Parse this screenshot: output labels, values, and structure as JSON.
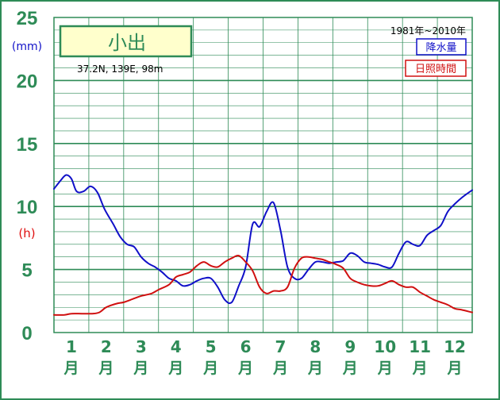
{
  "chart_data": {
    "type": "line",
    "title": "小出",
    "location": "37.2N,  139E,  98m",
    "period": "1981年~2010年",
    "unit_precip": "(mm)",
    "unit_sun": "(h)",
    "ylim": [
      0,
      25
    ],
    "y_ticks": [
      "0",
      "5",
      "10",
      "15",
      "20",
      "25"
    ],
    "months": [
      {
        "num": "1",
        "kanji": "月"
      },
      {
        "num": "2",
        "kanji": "月"
      },
      {
        "num": "3",
        "kanji": "月"
      },
      {
        "num": "4",
        "kanji": "月"
      },
      {
        "num": "5",
        "kanji": "月"
      },
      {
        "num": "6",
        "kanji": "月"
      },
      {
        "num": "7",
        "kanji": "月"
      },
      {
        "num": "8",
        "kanji": "月"
      },
      {
        "num": "9",
        "kanji": "月"
      },
      {
        "num": "10",
        "kanji": "月"
      },
      {
        "num": "11",
        "kanji": "月"
      },
      {
        "num": "12",
        "kanji": "月"
      }
    ],
    "x_range": [
      0.5,
      12.5
    ],
    "series": [
      {
        "name": "降水量",
        "color": "#1010c8",
        "x": [
          0.5,
          0.7,
          0.85,
          1.0,
          1.15,
          1.35,
          1.55,
          1.75,
          1.95,
          2.2,
          2.4,
          2.6,
          2.8,
          3.0,
          3.2,
          3.4,
          3.6,
          3.8,
          4.0,
          4.2,
          4.4,
          4.6,
          4.8,
          5.0,
          5.2,
          5.4,
          5.6,
          5.8,
          6.0,
          6.2,
          6.4,
          6.6,
          6.8,
          7.0,
          7.2,
          7.4,
          7.6,
          7.8,
          8.0,
          8.2,
          8.4,
          8.6,
          8.8,
          9.0,
          9.2,
          9.4,
          9.6,
          9.8,
          10.0,
          10.2,
          10.4,
          10.6,
          10.8,
          11.0,
          11.2,
          11.4,
          11.6,
          11.8,
          12.0,
          12.2,
          12.5
        ],
        "values": [
          11.4,
          12.1,
          12.5,
          12.2,
          11.2,
          11.2,
          11.6,
          11.1,
          9.8,
          8.6,
          7.6,
          7.0,
          6.8,
          6.0,
          5.5,
          5.2,
          4.8,
          4.3,
          4.1,
          3.7,
          3.8,
          4.1,
          4.3,
          4.3,
          3.6,
          2.6,
          2.4,
          3.7,
          5.2,
          8.6,
          8.4,
          9.6,
          10.3,
          8.1,
          5.2,
          4.3,
          4.3,
          5.0,
          5.6,
          5.6,
          5.5,
          5.6,
          5.7,
          6.3,
          6.1,
          5.6,
          5.5,
          5.4,
          5.2,
          5.2,
          6.3,
          7.2,
          7.0,
          6.9,
          7.7,
          8.1,
          8.5,
          9.6,
          10.2,
          10.7,
          11.3
        ]
      },
      {
        "name": "日照時間",
        "color": "#d01010",
        "x": [
          0.5,
          0.8,
          1.0,
          1.3,
          1.6,
          1.8,
          2.0,
          2.3,
          2.5,
          2.8,
          3.0,
          3.3,
          3.5,
          3.8,
          4.0,
          4.2,
          4.4,
          4.6,
          4.8,
          5.0,
          5.2,
          5.4,
          5.6,
          5.8,
          6.0,
          6.2,
          6.4,
          6.6,
          6.8,
          7.0,
          7.2,
          7.4,
          7.6,
          7.8,
          8.0,
          8.2,
          8.4,
          8.6,
          8.8,
          9.0,
          9.2,
          9.4,
          9.6,
          9.8,
          10.0,
          10.2,
          10.4,
          10.6,
          10.8,
          11.0,
          11.2,
          11.4,
          11.6,
          11.8,
          12.0,
          12.2,
          12.5
        ],
        "values": [
          1.4,
          1.4,
          1.5,
          1.5,
          1.5,
          1.6,
          2.0,
          2.3,
          2.4,
          2.7,
          2.9,
          3.1,
          3.4,
          3.8,
          4.4,
          4.6,
          4.8,
          5.3,
          5.6,
          5.3,
          5.2,
          5.6,
          5.9,
          6.1,
          5.6,
          4.9,
          3.6,
          3.1,
          3.3,
          3.3,
          3.6,
          5.1,
          5.9,
          6.0,
          5.9,
          5.8,
          5.6,
          5.4,
          5.1,
          4.3,
          4.0,
          3.8,
          3.7,
          3.7,
          3.9,
          4.1,
          3.8,
          3.6,
          3.6,
          3.2,
          2.9,
          2.6,
          2.4,
          2.2,
          1.9,
          1.8,
          1.6
        ]
      }
    ],
    "legend_position": "top-right",
    "grid": true
  }
}
